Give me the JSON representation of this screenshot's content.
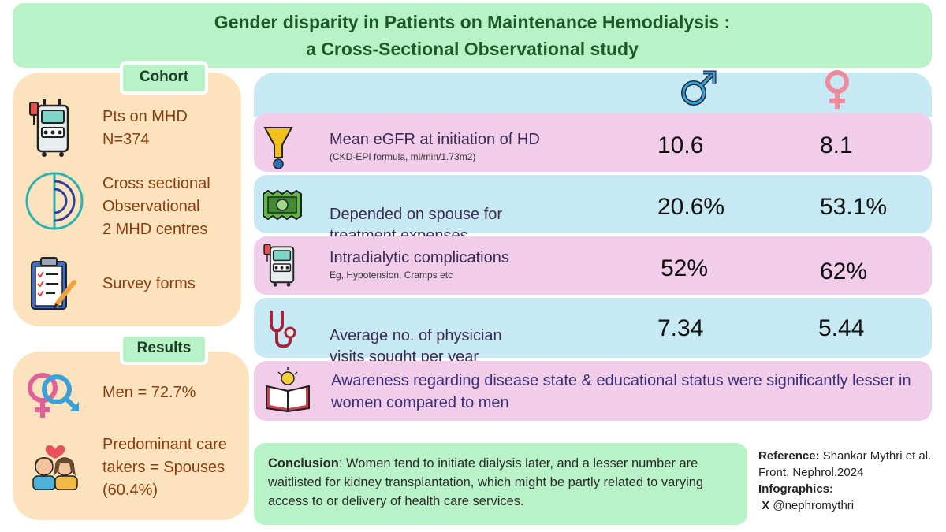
{
  "title": {
    "line1": "Gender disparity in Patients on Maintenance Hemodialysis :",
    "line2": "a Cross-Sectional Observational study"
  },
  "cohort": {
    "heading": "Cohort",
    "items": [
      {
        "icon": "dialysis-machine-icon",
        "text": "Pts on MHD\nN=374"
      },
      {
        "icon": "cross-section-circle-icon",
        "text": "Cross sectional\nObservational\n2 MHD centres"
      },
      {
        "icon": "survey-clipboard-icon",
        "text": "Survey forms"
      }
    ]
  },
  "results": {
    "heading": "Results",
    "items": [
      {
        "icon": "gender-symbols-icon",
        "text": "Men = 72.7%"
      },
      {
        "icon": "caretakers-couple-icon",
        "text": "Predominant care\ntakers = Spouses\n(60.4%)"
      }
    ]
  },
  "table": {
    "male_icon": "male-symbol-icon",
    "female_icon": "female-symbol-icon",
    "male_color": "#1f4e8c",
    "female_color": "#e0609a",
    "rows": [
      {
        "icon": "funnel-icon",
        "label": "Mean eGFR at initiation of HD",
        "sub": "(CKD-EPI formula, ml/min/1.73m2)",
        "male": "10.6",
        "female": "8.1"
      },
      {
        "icon": "money-icon",
        "label": "Depended on spouse for\ntreatment expenses",
        "sub": "",
        "male": "20.6%",
        "female": "53.1%"
      },
      {
        "icon": "dialysis-machine-icon",
        "label": "Intradialytic complications",
        "sub": "Eg, Hypotension, Cramps etc",
        "male": "52%",
        "female": "62%"
      },
      {
        "icon": "stethoscope-icon",
        "label": "Average no. of physician\nvisits sought per year",
        "sub": "",
        "male": "7.34",
        "female": "5.44"
      }
    ]
  },
  "awareness": {
    "icon": "book-lightbulb-icon",
    "text": "Awareness regarding disease state & educational status were significantly lesser in women compared to men"
  },
  "conclusion": {
    "label": "Conclusion",
    "text": ": Women tend to initiate dialysis later, and a lesser number are waitlisted for kidney transplantation, which might be partly related to varying access to or delivery of health care services."
  },
  "reference": {
    "label": "Reference:",
    "text": " Shankar Mythri et al. Front. Nephrol.2024",
    "infographics_label": "Infographics:",
    "handle": " X @nephromythri"
  }
}
